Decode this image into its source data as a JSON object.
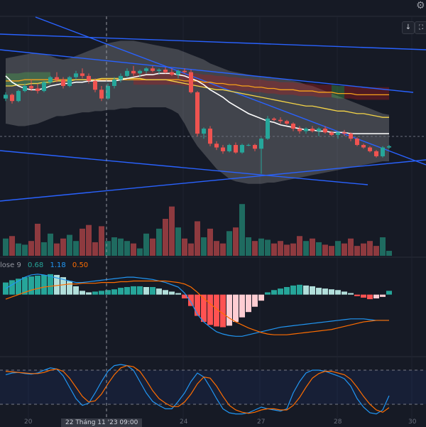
{
  "chart_data": [
    {
      "type": "candlestick",
      "panel": "price",
      "colors": {
        "up": "#26a69a",
        "down": "#ef5350",
        "bb_fill": "#9e9e9e",
        "cloud_green": "#4caf50",
        "cloud_red": "#b71c1c",
        "ma_white": "#ffffff",
        "ma_yellow": "#f5d547",
        "ma_orange": "#f7a21b",
        "trend_blue": "#2962ff"
      },
      "candles": [
        [
          40,
          45,
          38,
          43
        ],
        [
          43,
          44,
          36,
          38
        ],
        [
          38,
          47,
          37,
          46
        ],
        [
          46,
          52,
          45,
          50
        ],
        [
          50,
          55,
          46,
          48
        ],
        [
          48,
          52,
          44,
          46
        ],
        [
          46,
          54,
          45,
          53
        ],
        [
          53,
          58,
          52,
          57
        ],
        [
          57,
          61,
          53,
          55
        ],
        [
          55,
          57,
          48,
          50
        ],
        [
          50,
          58,
          49,
          57
        ],
        [
          57,
          62,
          55,
          60
        ],
        [
          60,
          64,
          56,
          58
        ],
        [
          58,
          60,
          52,
          54
        ],
        [
          54,
          56,
          45,
          47
        ],
        [
          47,
          50,
          38,
          40
        ],
        [
          40,
          52,
          39,
          50
        ],
        [
          50,
          57,
          48,
          55
        ],
        [
          55,
          60,
          53,
          58
        ],
        [
          58,
          64,
          57,
          62
        ],
        [
          62,
          66,
          58,
          60
        ],
        [
          60,
          63,
          57,
          62
        ],
        [
          62,
          65,
          60,
          64
        ],
        [
          64,
          66,
          61,
          62
        ],
        [
          62,
          64,
          59,
          63
        ],
        [
          63,
          65,
          60,
          61
        ],
        [
          61,
          64,
          58,
          59
        ],
        [
          59,
          63,
          56,
          62
        ],
        [
          62,
          64,
          60,
          61
        ],
        [
          61,
          63,
          44,
          45
        ],
        [
          45,
          46,
          10,
          12
        ],
        [
          12,
          17,
          8,
          16
        ],
        [
          16,
          18,
          2,
          4
        ],
        [
          4,
          6,
          -1,
          1
        ],
        [
          1,
          3,
          -4,
          -2
        ],
        [
          -2,
          4,
          -3,
          3
        ],
        [
          3,
          5,
          -4,
          -3
        ],
        [
          -3,
          4,
          -4,
          3
        ],
        [
          3,
          4,
          2,
          3
        ],
        [
          3,
          4,
          -2,
          0
        ],
        [
          0,
          9,
          -20,
          8
        ],
        [
          8,
          26,
          7,
          24
        ],
        [
          24,
          25,
          22,
          23
        ],
        [
          23,
          25,
          20,
          22
        ],
        [
          22,
          23,
          19,
          20
        ],
        [
          20,
          21,
          14,
          16
        ],
        [
          16,
          18,
          12,
          14
        ],
        [
          14,
          17,
          12,
          16
        ],
        [
          16,
          18,
          13,
          14
        ],
        [
          14,
          17,
          10,
          16
        ],
        [
          16,
          18,
          12,
          13
        ],
        [
          13,
          14,
          10,
          11
        ],
        [
          11,
          14,
          8,
          13
        ],
        [
          13,
          15,
          10,
          12
        ],
        [
          12,
          13,
          6,
          8
        ],
        [
          8,
          9,
          2,
          3
        ],
        [
          3,
          4,
          0,
          1
        ],
        [
          1,
          2,
          -3,
          -2
        ],
        [
          -2,
          -1,
          -7,
          -6
        ],
        [
          -6,
          2,
          -7,
          1
        ],
        [
          1,
          3,
          0,
          2
        ]
      ],
      "volume": [
        14,
        16,
        10,
        9,
        12,
        26,
        11,
        18,
        10,
        14,
        17,
        12,
        22,
        25,
        11,
        24,
        12,
        15,
        14,
        12,
        10,
        6,
        18,
        14,
        22,
        30,
        40,
        23,
        14,
        10,
        28,
        15,
        22,
        12,
        10,
        20,
        23,
        42,
        15,
        12,
        14,
        13,
        10,
        12,
        9,
        10,
        16,
        12,
        14,
        11,
        9,
        8,
        12,
        10,
        14,
        8,
        10,
        12,
        8,
        15,
        4
      ],
      "ma_white": [
        58,
        53,
        50,
        48,
        47,
        47,
        48,
        50,
        51,
        52,
        52,
        53,
        53,
        54,
        54,
        54,
        54,
        54,
        55,
        56,
        57,
        58,
        59,
        59,
        60,
        60,
        60,
        59,
        58,
        56,
        54,
        51,
        47,
        44,
        41,
        37,
        34,
        31,
        28,
        26,
        24,
        22,
        21,
        19,
        18,
        17,
        16,
        15,
        15,
        14,
        14,
        13,
        13,
        13,
        12,
        12,
        12,
        12,
        12,
        12,
        12
      ],
      "ma_yellow": [
        50,
        50,
        51,
        51,
        52,
        52,
        53,
        53,
        54,
        54,
        54,
        55,
        55,
        55,
        55,
        56,
        56,
        56,
        56,
        56,
        56,
        56,
        55,
        55,
        55,
        55,
        54,
        53,
        52,
        51,
        50,
        49,
        48,
        47,
        47,
        46,
        45,
        44,
        43,
        42,
        41,
        40,
        39,
        38,
        37,
        36,
        35,
        34,
        34,
        33,
        32,
        31,
        30,
        30,
        29,
        28,
        28,
        27,
        26,
        25,
        25
      ],
      "ma_orange": [
        54,
        54,
        54,
        55,
        55,
        55,
        55,
        55,
        55,
        55,
        55,
        55,
        55,
        55,
        55,
        55,
        55,
        55,
        55,
        55,
        55,
        55,
        55,
        55,
        55,
        55,
        55,
        55,
        54,
        54,
        54,
        53,
        53,
        52,
        52,
        51,
        51,
        50,
        50,
        49,
        49,
        48,
        48,
        47,
        47,
        47,
        46,
        46,
        46,
        45,
        45,
        45,
        44,
        44,
        44,
        43,
        43,
        43,
        43,
        43,
        43
      ],
      "bb_upper": [
        72,
        73,
        74,
        75,
        76,
        76,
        75,
        74,
        72,
        71,
        72,
        74,
        76,
        78,
        80,
        82,
        84,
        85,
        86,
        86,
        86,
        85,
        84,
        83,
        82,
        81,
        80,
        79,
        77,
        75,
        73,
        71,
        68,
        66,
        64,
        62,
        61,
        60,
        59,
        58,
        57,
        57,
        56,
        56,
        55,
        54,
        53,
        51,
        50,
        48,
        46,
        44,
        42,
        40,
        38,
        36,
        34,
        32,
        30,
        28,
        27
      ],
      "bb_lower": [
        20,
        19,
        18,
        18,
        19,
        20,
        22,
        24,
        26,
        26,
        27,
        28,
        29,
        29,
        30,
        30,
        31,
        31,
        32,
        32,
        33,
        33,
        33,
        33,
        33,
        33,
        31,
        28,
        20,
        10,
        2,
        -4,
        -10,
        -16,
        -20,
        -24,
        -26,
        -27,
        -28,
        -28,
        -28,
        -27,
        -27,
        -26,
        -25,
        -24,
        -23,
        -22,
        -21,
        -20,
        -19,
        -18,
        -17,
        -16,
        -15,
        -14,
        -13,
        -12,
        -11,
        -10,
        -10
      ],
      "ylim": [
        -40,
        110
      ]
    },
    {
      "type": "bar",
      "panel": "macd",
      "legend": {
        "label": "lose 9",
        "macd": "0.68",
        "signal": "1.18",
        "histogram": "0.50"
      },
      "legend_colors": {
        "label": "#9598a1",
        "macd": "#26a69a",
        "signal": "#2196f3",
        "histogram": "#ff6d00"
      },
      "histogram": [
        1.6,
        1.9,
        2.1,
        2.3,
        2.4,
        2.5,
        2.6,
        2.7,
        2.6,
        2.3,
        1.8,
        1.1,
        0.5,
        0.3,
        0.4,
        0.5,
        0.6,
        0.7,
        0.9,
        1.0,
        1.1,
        1.1,
        1.0,
        1.0,
        0.8,
        0.6,
        0.4,
        0.2,
        -0.5,
        -1.5,
        -2.8,
        -3.6,
        -4.0,
        -4.2,
        -4.3,
        -4.1,
        -3.6,
        -3.0,
        -2.3,
        -1.6,
        -0.8,
        0.3,
        0.6,
        0.8,
        1.0,
        1.2,
        1.3,
        1.2,
        1.1,
        0.9,
        0.8,
        0.7,
        0.6,
        0.4,
        0.2,
        -0.2,
        -0.4,
        -0.6,
        -0.5,
        -0.3,
        0.5
      ],
      "macd": [
        0.8,
        1.3,
        1.8,
        2.3,
        2.6,
        2.7,
        2.6,
        2.4,
        2.2,
        2.0,
        1.8,
        1.6,
        1.6,
        1.7,
        1.8,
        1.9,
        2.0,
        2.1,
        2.2,
        2.3,
        2.3,
        2.2,
        2.1,
        2.0,
        1.8,
        1.6,
        1.3,
        1.0,
        0.2,
        -1.0,
        -2.6,
        -3.6,
        -4.3,
        -4.9,
        -5.2,
        -5.4,
        -5.5,
        -5.5,
        -5.3,
        -5.1,
        -4.9,
        -4.7,
        -4.5,
        -4.3,
        -4.2,
        -4.1,
        -4.0,
        -3.9,
        -3.8,
        -3.7,
        -3.6,
        -3.5,
        -3.4,
        -3.3,
        -3.2,
        -3.2,
        -3.2,
        -3.3,
        -3.4,
        -3.4,
        -3.4
      ],
      "signal": [
        -0.6,
        -0.3,
        0.0,
        0.3,
        0.6,
        0.8,
        1.0,
        1.1,
        1.2,
        1.3,
        1.4,
        1.4,
        1.5,
        1.5,
        1.5,
        1.6,
        1.6,
        1.6,
        1.7,
        1.7,
        1.8,
        1.8,
        1.8,
        1.8,
        1.8,
        1.8,
        1.7,
        1.6,
        1.4,
        1.0,
        0.3,
        -0.5,
        -1.2,
        -1.9,
        -2.5,
        -3.1,
        -3.6,
        -4.0,
        -4.4,
        -4.7,
        -5.0,
        -5.2,
        -5.3,
        -5.3,
        -5.3,
        -5.2,
        -5.1,
        -5.0,
        -4.9,
        -4.8,
        -4.7,
        -4.6,
        -4.4,
        -4.2,
        -4.0,
        -3.8,
        -3.6,
        -3.5,
        -3.4,
        -3.4,
        -3.4
      ],
      "ylim": [
        -8,
        4
      ]
    },
    {
      "type": "line",
      "panel": "stochastic",
      "k": [
        72,
        75,
        76,
        74,
        73,
        75,
        80,
        84,
        82,
        70,
        50,
        30,
        18,
        22,
        40,
        60,
        78,
        88,
        90,
        88,
        80,
        60,
        40,
        25,
        18,
        12,
        12,
        25,
        40,
        60,
        75,
        68,
        50,
        30,
        12,
        5,
        3,
        3,
        5,
        10,
        15,
        12,
        10,
        8,
        12,
        40,
        60,
        75,
        80,
        80,
        78,
        74,
        70,
        65,
        52,
        30,
        15,
        5,
        3,
        10,
        35
      ],
      "d": [
        78,
        77,
        76,
        75,
        74,
        74,
        76,
        80,
        82,
        78,
        66,
        50,
        34,
        24,
        26,
        38,
        56,
        72,
        84,
        88,
        86,
        78,
        62,
        44,
        30,
        22,
        16,
        16,
        24,
        38,
        56,
        68,
        66,
        52,
        34,
        18,
        10,
        6,
        4,
        6,
        10,
        12,
        12,
        10,
        10,
        18,
        32,
        50,
        66,
        74,
        78,
        78,
        75,
        72,
        64,
        50,
        34,
        20,
        10,
        6,
        14
      ],
      "ylim": [
        0,
        100
      ],
      "bands": [
        20,
        80
      ]
    }
  ],
  "x_axis": {
    "labels": [
      "20",
      "2",
      "24",
      "27",
      "28",
      "30"
    ],
    "crosshair_label": "22 Tháng 11 '23   09:00"
  },
  "ui": {
    "collapse_icon": "arrow-down-icon",
    "expand_icon": "maximize-icon",
    "settings_icon": "gear-icon",
    "collapse_glyph": "↓",
    "expand_glyph": "⛶",
    "settings_glyph": "⚙"
  }
}
